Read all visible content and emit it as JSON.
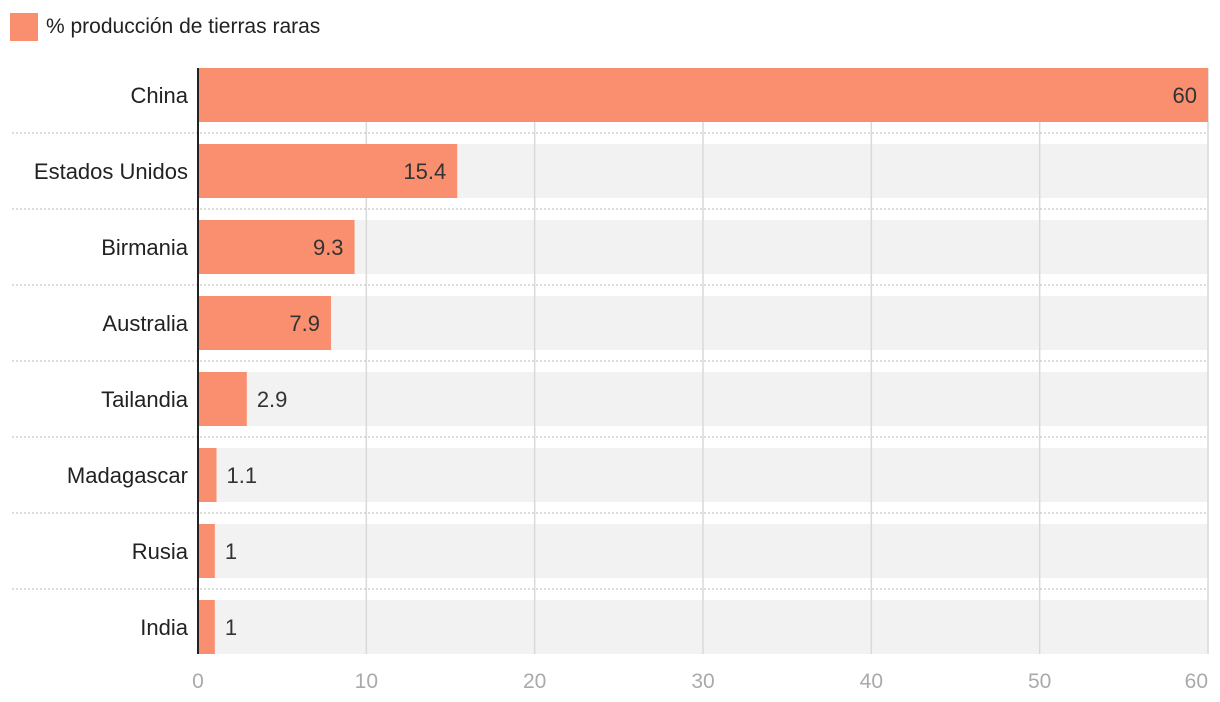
{
  "chart_data": {
    "type": "bar",
    "orientation": "horizontal",
    "title": "",
    "xlabel": "",
    "ylabel": "",
    "categories": [
      "China",
      "Estados Unidos",
      "Birmania",
      "Australia",
      "Tailandia",
      "Madagascar",
      "Rusia",
      "India"
    ],
    "series": [
      {
        "name": "% producción de tierras raras",
        "values": [
          60,
          15.4,
          9.3,
          7.9,
          2.9,
          1.1,
          1,
          1
        ],
        "labels": [
          "60",
          "15.4",
          "9.3",
          "7.9",
          "2.9",
          "1.1",
          "1",
          "1"
        ]
      }
    ],
    "xlim": [
      0,
      60
    ],
    "x_ticks": [
      0,
      10,
      20,
      30,
      40,
      50,
      60
    ],
    "x_tick_labels": [
      "0",
      "10",
      "20",
      "30",
      "40",
      "50",
      "60"
    ],
    "grid": true,
    "legend_position": "top-left",
    "colors": {
      "bar": "#fa8f6f",
      "row_background": "#f2f2f2",
      "grid": "#d9d9d9",
      "axis": "#222222",
      "tick_label": "#aaaaaa",
      "category_label": "#222222",
      "value_label": "#333333",
      "separator": "#bbbbbb"
    }
  }
}
